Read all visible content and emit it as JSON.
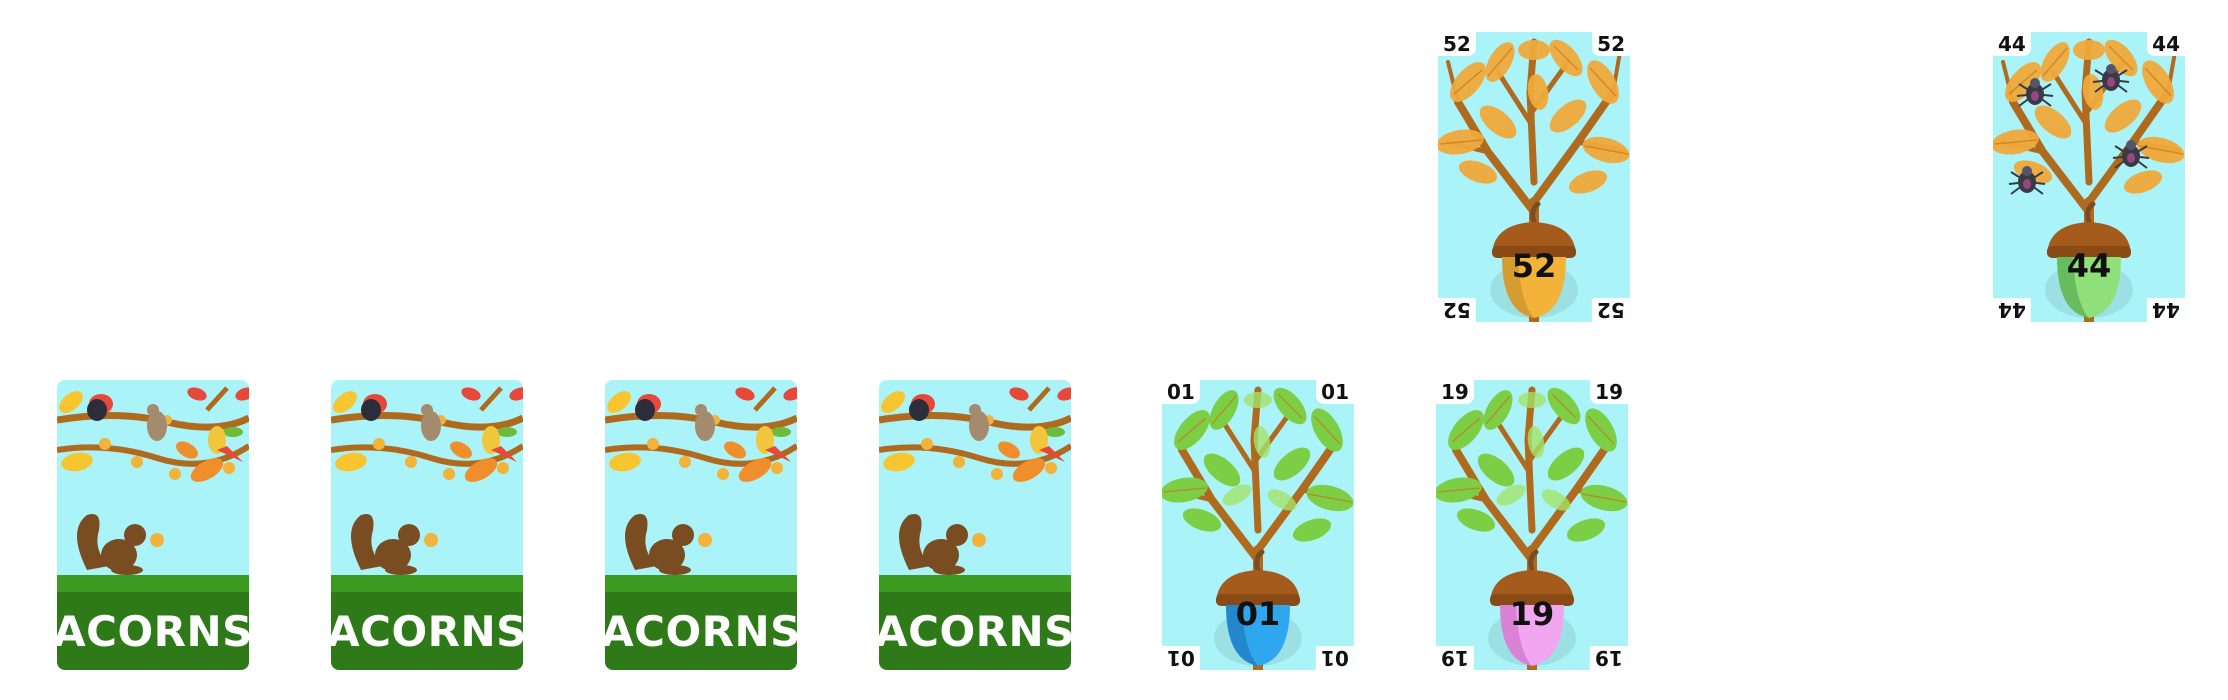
{
  "deck": {
    "back_title": "ACORNS",
    "back_count": 4
  },
  "cards": [
    {
      "id": "card-52",
      "number": "52",
      "season": "autumn",
      "leaf_color": "#f0a93a",
      "acorn_color": "#f3b23a",
      "spiders": 0
    },
    {
      "id": "card-44",
      "number": "44",
      "season": "autumn",
      "leaf_color": "#f0a93a",
      "acorn_color": "#8fe07a",
      "spiders": 4
    },
    {
      "id": "card-01",
      "number": "01",
      "season": "summer",
      "leaf_color": "#7ccf45",
      "acorn_color": "#2fa7ee",
      "spiders": 0
    },
    {
      "id": "card-19",
      "number": "19",
      "season": "summer",
      "leaf_color": "#7ccf45",
      "acorn_color": "#f2a6ef",
      "spiders": 0
    }
  ],
  "colors": {
    "sky": "#aaf3f8",
    "grass": "#2f7a18",
    "grass_light": "#3b9a1f",
    "branch": "#b06a1e",
    "acorn_cap": "#a45b1c"
  }
}
